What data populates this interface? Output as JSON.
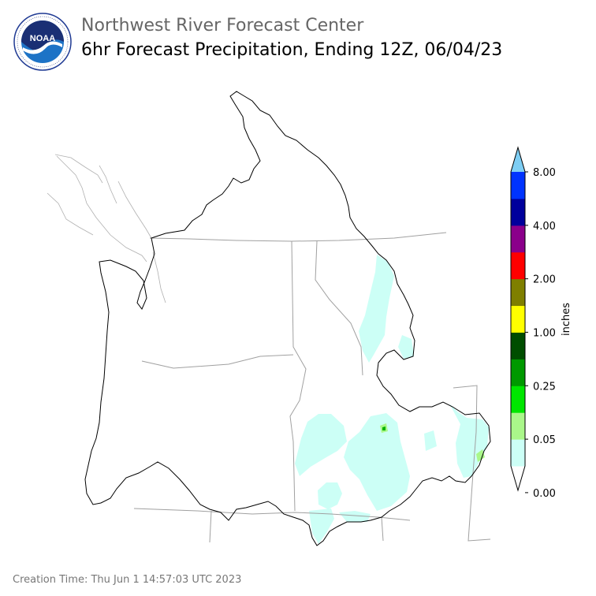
{
  "header": {
    "logo_text": "NOAA",
    "title": "Northwest River Forecast Center",
    "subtitle": "6hr Forecast Precipitation, Ending 12Z, 06/04/23"
  },
  "legend": {
    "label": "inches",
    "ticks": [
      "8.00",
      "4.00",
      "2.00",
      "1.00",
      "0.25",
      "0.05",
      "0.00"
    ],
    "colors": [
      "#ffffff",
      "#ccfff6",
      "#aaf78a",
      "#00e600",
      "#009900",
      "#004d00",
      "#ffff00",
      "#7f7f00",
      "#ff0000",
      "#8b008b",
      "#00009c",
      "#0033ff",
      "#7ecef4"
    ]
  },
  "footer": {
    "creation_time": "Creation Time: Thu Jun 1 14:57:03 UTC 2023"
  }
}
